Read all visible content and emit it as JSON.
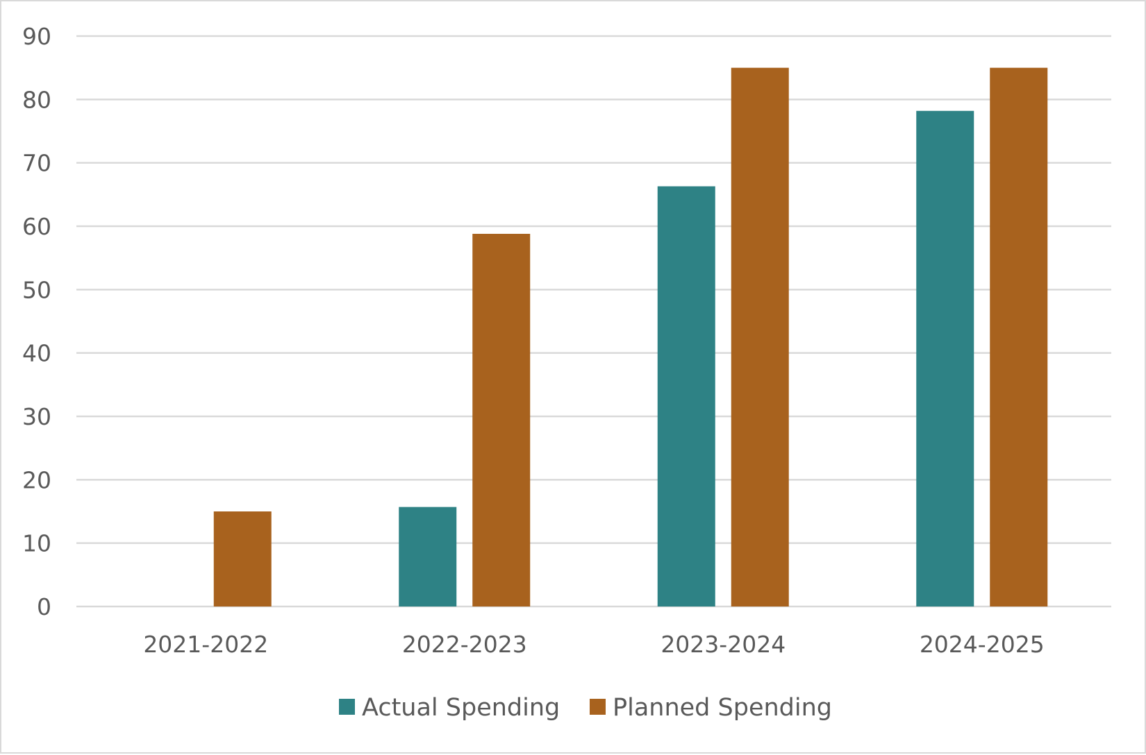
{
  "chart_data": {
    "type": "bar",
    "categories": [
      "2021-2022",
      "2022-2023",
      "2023-2024",
      "2024-2025"
    ],
    "series": [
      {
        "name": "Actual Spending",
        "values": [
          0,
          15.7,
          66.3,
          78.2
        ],
        "color": "#2e8285"
      },
      {
        "name": "Planned Spending",
        "values": [
          15.0,
          58.8,
          85.0,
          85.0
        ],
        "color": "#a8621e"
      }
    ],
    "title": "",
    "xlabel": "",
    "ylabel": "",
    "ylim": [
      0,
      90
    ],
    "yticks": [
      0,
      10,
      20,
      30,
      40,
      50,
      60,
      70,
      80,
      90
    ],
    "grid": true,
    "legend_position": "bottom"
  }
}
